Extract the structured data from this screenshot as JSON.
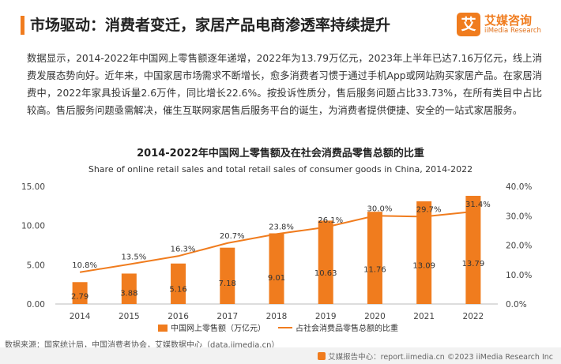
{
  "header": {
    "title": "市场驱动：消费者变迁，家居产品电商渗透率持续提升"
  },
  "logo": {
    "glyph": "艾",
    "cn": "艾媒咨询",
    "en": "iiMedia Research"
  },
  "paragraph": "数据显示，2014-2022年中国网上零售额逐年递增，2022年为13.79万亿元，2023年上半年已达7.16万亿元，线上消费发展态势向好。近年来，中国家居市场需求不断增长，愈多消费者习惯于通过手机App或网站购买家居产品。在家居消费中，2022年家具投诉量2.6万件，同比增长22.6%。按投诉性质分，售后服务问题占比33.73%，在所有类目中占比较高。售后服务问题亟需解决，催生互联网家居售后服务平台的诞生，为消费者提供便捷、安全的一站式家居服务。",
  "chart_data": {
    "type": "bar",
    "title": "2014-2022年中国网上零售额及在社会消费品零售总额的比重",
    "subtitle": "Share of online retail sales and total retail sales of consumer goods in China, 2014-2022",
    "categories": [
      "2014",
      "2015",
      "2016",
      "2017",
      "2018",
      "2019",
      "2020",
      "2021",
      "2022"
    ],
    "series": [
      {
        "name": "中国网上零售额（万亿元）",
        "type": "bar",
        "axis": "left",
        "color": "#f07c1e",
        "values": [
          2.79,
          3.88,
          5.16,
          7.18,
          9.01,
          10.63,
          11.76,
          13.09,
          13.79
        ],
        "labels": [
          "2.79",
          "3.88",
          "5.16",
          "7.18",
          "9.01",
          "10.63",
          "11.76",
          "13.09",
          "13.79"
        ]
      },
      {
        "name": "占社会消费品零售总额的比重",
        "type": "line",
        "axis": "right",
        "color": "#f07c1e",
        "values": [
          10.8,
          13.5,
          16.3,
          20.7,
          23.8,
          26.1,
          30.0,
          29.7,
          31.4
        ],
        "labels": [
          "10.8%",
          "13.5%",
          "16.3%",
          "20.7%",
          "23.8%",
          "26.1%",
          "30.0%",
          "29.7%",
          "31.4%"
        ]
      }
    ],
    "yleft": {
      "min": 0,
      "max": 15,
      "ticks": [
        "0.00",
        "5.00",
        "10.00",
        "15.00"
      ]
    },
    "yright": {
      "min": 0,
      "max": 40,
      "ticks": [
        "0.0%",
        "10.0%",
        "20.0%",
        "30.0%",
        "40.0%"
      ]
    },
    "grid": false,
    "legend_position": "bottom-center"
  },
  "source": "数据来源：国家统计局，中国消费者协会，艾媒数据中心（data.iimedia.cn）",
  "footer": "艾媒报告中心：report.iimedia.cn ©2023 iiMedia Research Inc"
}
